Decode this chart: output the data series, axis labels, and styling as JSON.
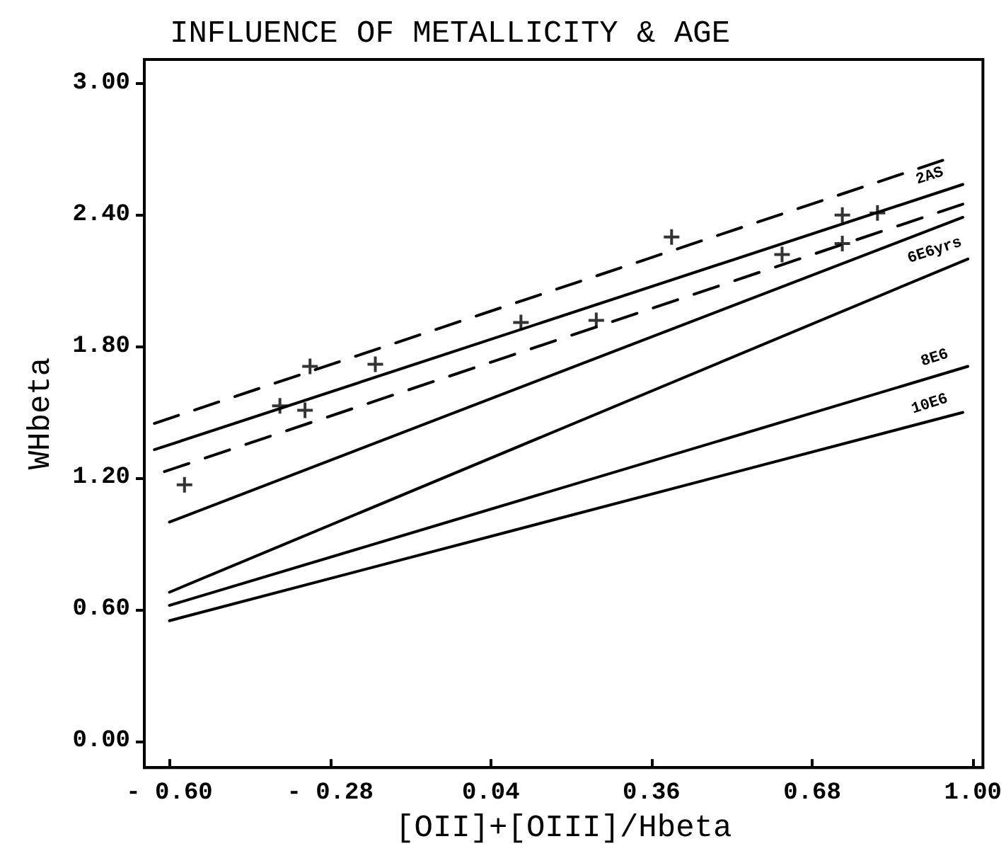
{
  "chart_data": {
    "type": "line",
    "title": "INFLUENCE OF METALLICITY & AGE",
    "xlabel": "[OII]+[OIII]/Hbeta",
    "ylabel": "WHbeta",
    "xlim": [
      -0.65,
      1.02
    ],
    "ylim": [
      -0.12,
      3.11
    ],
    "xticks": [
      {
        "value": -0.6,
        "label": "- 0.60"
      },
      {
        "value": -0.28,
        "label": "- 0.28"
      },
      {
        "value": 0.04,
        "label": "0.04"
      },
      {
        "value": 0.36,
        "label": "0.36"
      },
      {
        "value": 0.68,
        "label": "0.68"
      },
      {
        "value": 1.0,
        "label": "1.00"
      }
    ],
    "yticks": [
      {
        "value": 0,
        "label": "0.00"
      },
      {
        "value": 0.6,
        "label": "0.60"
      },
      {
        "value": 1.2,
        "label": "1.20"
      },
      {
        "value": 1.8,
        "label": "1.80"
      },
      {
        "value": 2.4,
        "label": "2.40"
      },
      {
        "value": 3.0,
        "label": "3.00"
      }
    ],
    "grid": false,
    "legend": false,
    "series": [
      {
        "line_style": "dashed",
        "color": "#000000",
        "x": [
          -0.63,
          0.94
        ],
        "values": [
          1.45,
          2.65
        ]
      },
      {
        "line_style": "solid",
        "name": "2AS",
        "color": "#000000",
        "x": [
          -0.63,
          0.98
        ],
        "values": [
          1.33,
          2.54
        ]
      },
      {
        "line_style": "dashed",
        "color": "#000000",
        "x": [
          -0.61,
          0.98
        ],
        "values": [
          1.23,
          2.45
        ]
      },
      {
        "line_style": "solid",
        "color": "#000000",
        "x": [
          -0.6,
          0.98
        ],
        "values": [
          1.0,
          2.39
        ]
      },
      {
        "line_style": "solid",
        "name": "6E6yrs",
        "color": "#000000",
        "x": [
          -0.6,
          0.99
        ],
        "values": [
          0.68,
          2.2
        ]
      },
      {
        "line_style": "solid",
        "name": "8E6",
        "color": "#000000",
        "x": [
          -0.6,
          0.99
        ],
        "values": [
          0.62,
          1.71
        ]
      },
      {
        "line_style": "solid",
        "name": "10E6",
        "color": "#000000",
        "x": [
          -0.6,
          0.98
        ],
        "values": [
          0.55,
          1.5
        ]
      },
      {
        "type": "scatter",
        "marker": "cross",
        "color": "#000000",
        "x": [
          -0.57,
          -0.38,
          -0.33,
          -0.32,
          -0.19,
          0.1,
          0.25,
          0.4,
          0.62,
          0.74,
          0.74,
          0.81
        ],
        "values": [
          1.17,
          1.53,
          1.51,
          1.71,
          1.72,
          1.91,
          1.92,
          2.3,
          2.22,
          2.4,
          2.27,
          2.41
        ]
      }
    ]
  }
}
